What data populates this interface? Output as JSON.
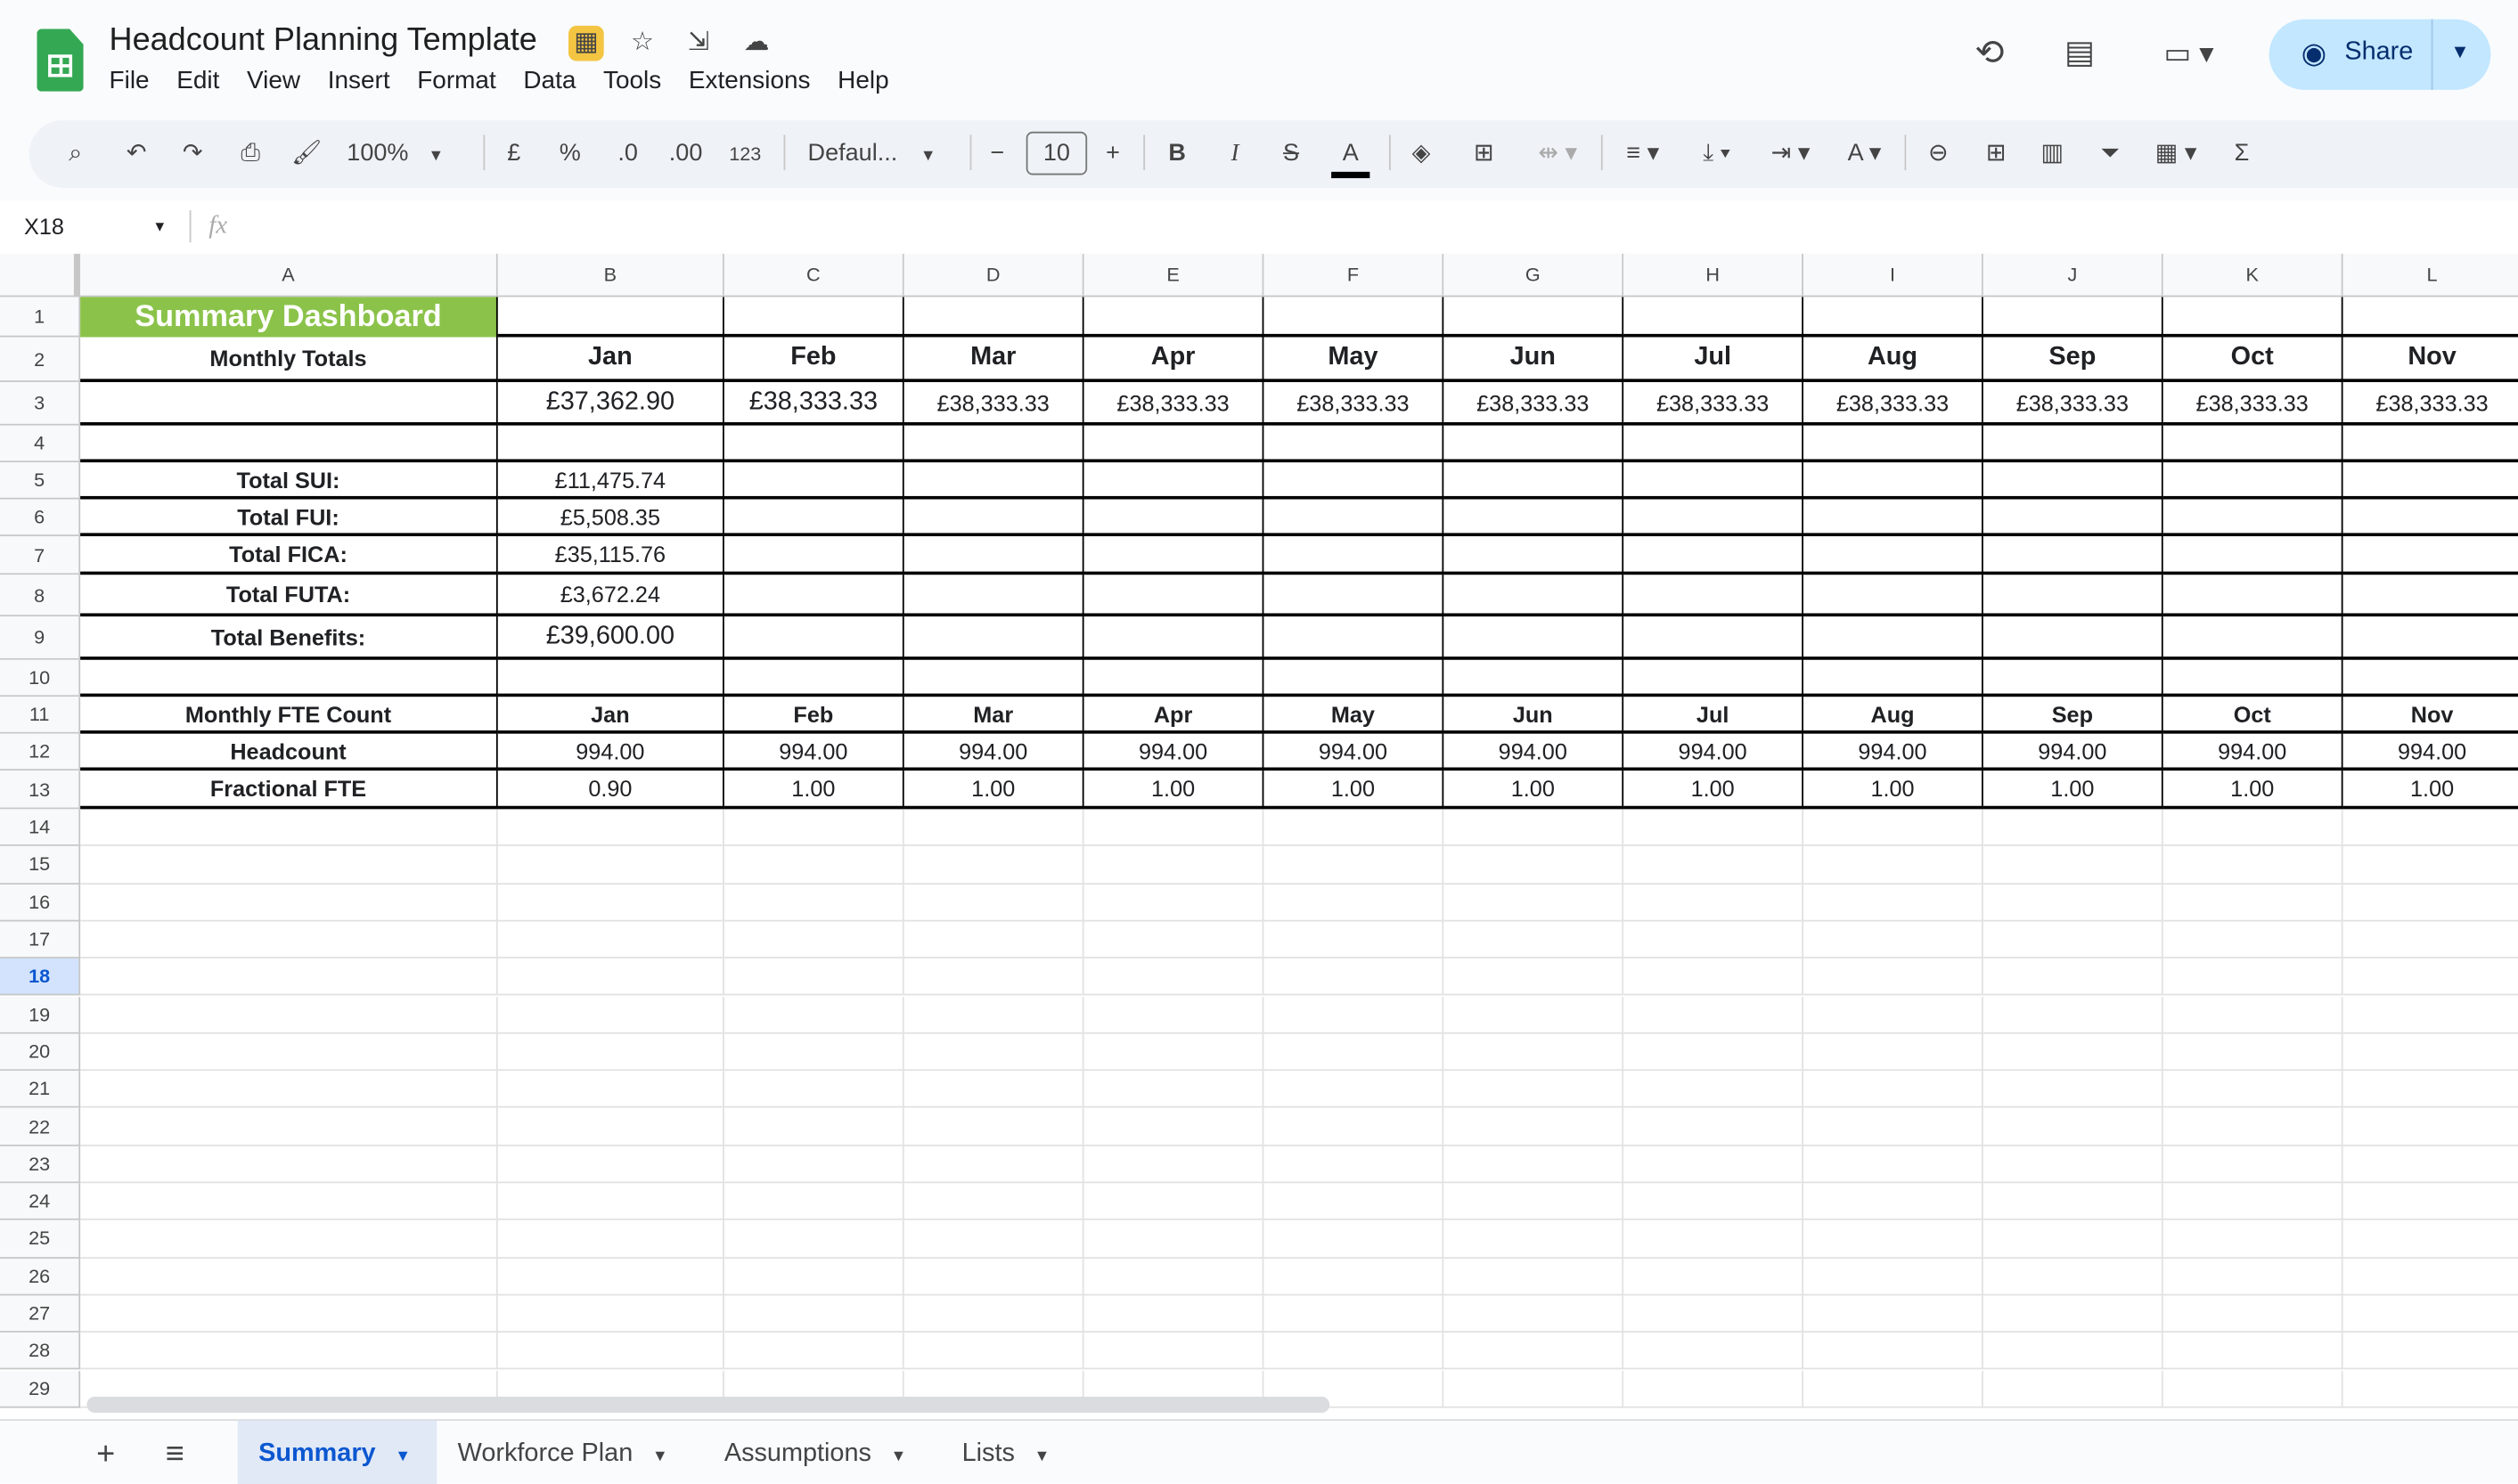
{
  "app": {
    "title": "Headcount Planning Template",
    "brand_color": "#34a853",
    "share_label": "Share",
    "menu": [
      "File",
      "Edit",
      "View",
      "Insert",
      "Format",
      "Data",
      "Tools",
      "Extensions",
      "Help"
    ]
  },
  "toolbar": {
    "zoom": "100%",
    "currency": "£",
    "percent": "%",
    "dec_less": ".0",
    "dec_more": ".00",
    "format_123": "123",
    "font": "Defaul...",
    "font_size": "10"
  },
  "formula_bar": {
    "cell_ref": "X18",
    "fx": "fx",
    "value": ""
  },
  "sheet": {
    "columns": [
      "A",
      "B",
      "C",
      "D",
      "E",
      "F",
      "G",
      "H",
      "I",
      "J",
      "K",
      "L"
    ],
    "selected_row": 18,
    "row_count": 29,
    "title_fill": "#8bc34a",
    "rows": [
      [
        "Summary Dashboard",
        "",
        "",
        "",
        "",
        "",
        "",
        "",
        "",
        "",
        "",
        ""
      ],
      [
        "Monthly Totals",
        "Jan",
        "Feb",
        "Mar",
        "Apr",
        "May",
        "Jun",
        "Jul",
        "Aug",
        "Sep",
        "Oct",
        "Nov"
      ],
      [
        "",
        "£37,362.90",
        "£38,333.33",
        "£38,333.33",
        "£38,333.33",
        "£38,333.33",
        "£38,333.33",
        "£38,333.33",
        "£38,333.33",
        "£38,333.33",
        "£38,333.33",
        "£38,333.33"
      ],
      [
        "",
        "",
        "",
        "",
        "",
        "",
        "",
        "",
        "",
        "",
        "",
        ""
      ],
      [
        "Total SUI:",
        "£11,475.74",
        "",
        "",
        "",
        "",
        "",
        "",
        "",
        "",
        "",
        ""
      ],
      [
        "Total FUI:",
        "£5,508.35",
        "",
        "",
        "",
        "",
        "",
        "",
        "",
        "",
        "",
        ""
      ],
      [
        "Total FICA:",
        "£35,115.76",
        "",
        "",
        "",
        "",
        "",
        "",
        "",
        "",
        "",
        ""
      ],
      [
        "Total FUTA:",
        "£3,672.24",
        "",
        "",
        "",
        "",
        "",
        "",
        "",
        "",
        "",
        ""
      ],
      [
        "Total Benefits:",
        "£39,600.00",
        "",
        "",
        "",
        "",
        "",
        "",
        "",
        "",
        "",
        ""
      ],
      [
        "",
        "",
        "",
        "",
        "",
        "",
        "",
        "",
        "",
        "",
        "",
        ""
      ],
      [
        "Monthly FTE Count",
        "Jan",
        "Feb",
        "Mar",
        "Apr",
        "May",
        "Jun",
        "Jul",
        "Aug",
        "Sep",
        "Oct",
        "Nov"
      ],
      [
        "Headcount",
        "994.00",
        "994.00",
        "994.00",
        "994.00",
        "994.00",
        "994.00",
        "994.00",
        "994.00",
        "994.00",
        "994.00",
        "994.00"
      ],
      [
        "Fractional FTE",
        "0.90",
        "1.00",
        "1.00",
        "1.00",
        "1.00",
        "1.00",
        "1.00",
        "1.00",
        "1.00",
        "1.00",
        "1.00"
      ]
    ]
  },
  "tabs": [
    {
      "label": "Summary",
      "active": true
    },
    {
      "label": "Workforce Plan"
    },
    {
      "label": "Assumptions"
    },
    {
      "label": "Lists"
    }
  ],
  "accent": "#0b57d0"
}
